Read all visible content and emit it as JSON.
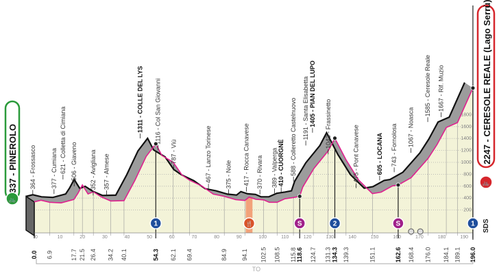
{
  "chart_data": {
    "type": "area",
    "title": "",
    "xlabel": "",
    "ylabel": "",
    "xlim": [
      0,
      196
    ],
    "ylim": [
      0,
      2247
    ],
    "grid": true,
    "profile": [
      [
        0,
        337
      ],
      [
        3,
        364
      ],
      [
        6.9,
        330
      ],
      [
        12,
        320
      ],
      [
        17.7,
        377
      ],
      [
        19.5,
        480
      ],
      [
        21.5,
        621
      ],
      [
        24,
        470
      ],
      [
        26.4,
        506
      ],
      [
        30,
        420
      ],
      [
        34.2,
        352
      ],
      [
        40.1,
        357
      ],
      [
        45,
        700
      ],
      [
        50,
        1100
      ],
      [
        54.3,
        1311
      ],
      [
        57,
        1116
      ],
      [
        62.1,
        1000
      ],
      [
        66,
        787
      ],
      [
        69.4,
        700
      ],
      [
        75,
        600
      ],
      [
        80,
        467
      ],
      [
        84.9,
        430
      ],
      [
        90,
        375
      ],
      [
        94.1,
        360
      ],
      [
        96,
        417
      ],
      [
        99,
        380
      ],
      [
        102.5,
        370
      ],
      [
        105,
        330
      ],
      [
        108.5,
        330
      ],
      [
        112,
        389
      ],
      [
        115.8,
        410
      ],
      [
        118.6,
        430
      ],
      [
        120,
        588
      ],
      [
        125,
        900
      ],
      [
        131.3,
        1191
      ],
      [
        134.3,
        1405
      ],
      [
        139.3,
        1043
      ],
      [
        145,
        700
      ],
      [
        151.1,
        475
      ],
      [
        155,
        500
      ],
      [
        160,
        605
      ],
      [
        162.6,
        620
      ],
      [
        168.4,
        743
      ],
      [
        176,
        1067
      ],
      [
        180,
        1300
      ],
      [
        184.1,
        1585
      ],
      [
        189.1,
        1667
      ],
      [
        196,
        2247
      ]
    ],
    "x_ticks": [
      0,
      10,
      20,
      30,
      40,
      50,
      60,
      70,
      80,
      90,
      100,
      110,
      120,
      130,
      140,
      150,
      160,
      170,
      180,
      190
    ],
    "y_ticks": [
      200,
      400,
      600,
      800,
      1000,
      1200,
      1400,
      1600,
      1800
    ],
    "km_labels": [
      {
        "km": 0,
        "text": "0.0",
        "bold": true
      },
      {
        "km": 6.9,
        "text": "6.9"
      },
      {
        "km": 17.7,
        "text": "17.7"
      },
      {
        "km": 21.5,
        "text": "21.5"
      },
      {
        "km": 26.4,
        "text": "26.4"
      },
      {
        "km": 34.2,
        "text": "34.2"
      },
      {
        "km": 40.1,
        "text": "40.1"
      },
      {
        "km": 54.3,
        "text": "54.3",
        "bold": true
      },
      {
        "km": 62.1,
        "text": "62.1"
      },
      {
        "km": 69.4,
        "text": "69.4"
      },
      {
        "km": 84.9,
        "text": "84.9"
      },
      {
        "km": 94.1,
        "text": "94.1"
      },
      {
        "km": 102.5,
        "text": "102.5"
      },
      {
        "km": 108.5,
        "text": "108.5"
      },
      {
        "km": 115.8,
        "text": "115.8"
      },
      {
        "km": 118.6,
        "text": "118.6",
        "bold": true
      },
      {
        "km": 124.7,
        "text": "124.7"
      },
      {
        "km": 131.3,
        "text": "131.3"
      },
      {
        "km": 134.3,
        "text": "134.3",
        "bold": true
      },
      {
        "km": 139.3,
        "text": "139.3"
      },
      {
        "km": 151.1,
        "text": "151.1"
      },
      {
        "km": 162.6,
        "text": "162.6",
        "bold": true
      },
      {
        "km": 168.4,
        "text": "168.4"
      },
      {
        "km": 176.0,
        "text": "176.0"
      },
      {
        "km": 184.1,
        "text": "184.1"
      },
      {
        "km": 189.1,
        "text": "189.1"
      },
      {
        "km": 196.0,
        "text": "196.0",
        "bold": true
      }
    ],
    "place_labels": [
      {
        "km": 3,
        "elev": 364,
        "text": "364 - Frossasco"
      },
      {
        "km": 12.5,
        "elev": 377,
        "text": "377 - Cumiana"
      },
      {
        "km": 16.5,
        "elev": 621,
        "text": "621 - Colletta di Cimiana"
      },
      {
        "km": 21.5,
        "elev": 506,
        "text": "506 - Giaveno"
      },
      {
        "km": 30,
        "elev": 352,
        "text": "352 - Avigliana"
      },
      {
        "km": 36,
        "elev": 357,
        "text": "357 - Almese"
      },
      {
        "km": 51,
        "elev": 1311,
        "text": "1311 - COLLE DEL LYS",
        "bold": true
      },
      {
        "km": 59,
        "elev": 1116,
        "text": "1116 - Col San Giovanni"
      },
      {
        "km": 66,
        "elev": 787,
        "text": "787 - Viù"
      },
      {
        "km": 81.5,
        "elev": 467,
        "text": "467 - Lanzo Torinese"
      },
      {
        "km": 90.5,
        "elev": 375,
        "text": "375 - Nole"
      },
      {
        "km": 98.5,
        "elev": 417,
        "text": "417 - Rocca Canavese"
      },
      {
        "km": 104.5,
        "elev": 370,
        "text": "370 - Rivara"
      },
      {
        "km": 111,
        "elev": 389,
        "text": "389 - Valperga"
      },
      {
        "km": 114,
        "elev": 410,
        "text": "410 - CUORGNÈ",
        "bold": true
      },
      {
        "km": 119.5,
        "elev": 588,
        "text": "588 - Colleretto Castelnuovo"
      },
      {
        "km": 125,
        "elev": 1191,
        "text": "1191 - Santa Elisabetta"
      },
      {
        "km": 128,
        "elev": 1405,
        "text": "1405 - PIAN DEL LUPO",
        "bold": true
      },
      {
        "km": 135,
        "elev": 1043,
        "text": "1043 - Frassinetto"
      },
      {
        "km": 147.5,
        "elev": 475,
        "text": "475 - Pont Canavese"
      },
      {
        "km": 158,
        "elev": 605,
        "text": "605 - LOCANA",
        "bold": true
      },
      {
        "km": 164.5,
        "elev": 743,
        "text": "743 - Fornolosa"
      },
      {
        "km": 172,
        "elev": 1067,
        "text": "1067 - Noasca"
      },
      {
        "km": 179.5,
        "elev": 1585,
        "text": "1585 - Ceresole Reale"
      },
      {
        "km": 185.5,
        "elev": 1667,
        "text": "1667 - Rif. Muzio"
      }
    ],
    "markers": [
      {
        "km": 54.3,
        "type": "gpm",
        "label": "1",
        "color": "#1f4e9c"
      },
      {
        "km": 96,
        "type": "feed",
        "label": "🍴",
        "color": "#d9542a"
      },
      {
        "km": 118.6,
        "type": "sprint",
        "label": "S",
        "color": "#a0208a"
      },
      {
        "km": 134.3,
        "type": "gpm",
        "label": "2",
        "color": "#1f4e9c"
      },
      {
        "km": 162.6,
        "type": "sprint",
        "label": "S",
        "color": "#a0208a"
      },
      {
        "km": 196,
        "type": "gpm",
        "label": "1",
        "color": "#1f4e9c"
      }
    ],
    "small_markers": [
      {
        "km": 168.4
      },
      {
        "km": 172.5
      }
    ],
    "feed_zone": [
      94.5,
      97.5
    ],
    "province_label": "TO"
  },
  "start": {
    "text": "337 - PINEROLO",
    "color": "#2a9a3a"
  },
  "finish": {
    "text": "2247 - CERESOLE REALE (Lago Serrù)",
    "color": "#d6262c"
  },
  "finish_tag": "SDS",
  "colors": {
    "fill": "#f3f3d8",
    "band": "#9c9c9c",
    "front": "#e0208f",
    "top": "#111111"
  }
}
